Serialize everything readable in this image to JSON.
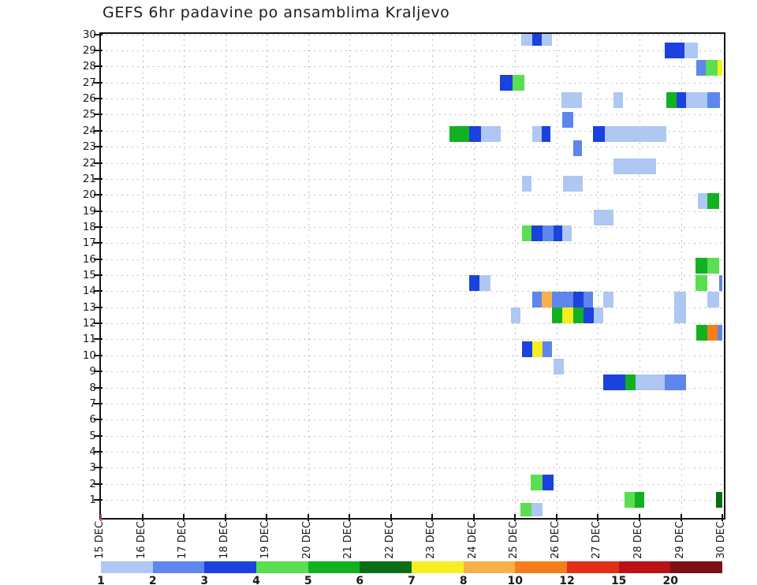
{
  "title": "GEFS 6hr padavine po ansamblima Kraljevo",
  "chart_data": {
    "type": "heatmap",
    "description": "GEFS ensemble 6-hourly precipitation grid; x = time in 6h slots over 15 days, y = ensemble member 1-30, cell color = precipitation amount (mm/6h)",
    "slot_hours": 6,
    "days": 15,
    "x_axis": {
      "labels": [
        "15 DEC",
        "16 DEC",
        "17 DEC",
        "18 DEC",
        "19 DEC",
        "20 DEC",
        "21 DEC",
        "22 DEC",
        "23 DEC",
        "24 DEC",
        "25 DEC",
        "26 DEC",
        "27 DEC",
        "28 DEC",
        "29 DEC",
        "30 DEC"
      ]
    },
    "y_axis": {
      "min": 1,
      "max": 30,
      "step": 1,
      "labels": [
        30,
        29,
        28,
        27,
        26,
        25,
        24,
        23,
        22,
        21,
        20,
        19,
        18,
        17,
        16,
        15,
        14,
        13,
        12,
        11,
        10,
        9,
        8,
        7,
        6,
        5,
        4,
        3,
        2,
        1
      ]
    },
    "grid": {
      "shown": true,
      "style": "dotted",
      "color": "#8c8c8c"
    },
    "palette": {
      "L": {
        "hex": "#aec7f3",
        "range_mm": "1-2"
      },
      "M": {
        "hex": "#5e86ec",
        "range_mm": "2-3"
      },
      "D": {
        "hex": "#1b41de",
        "range_mm": "3-4"
      },
      "LG": {
        "hex": "#5ade52",
        "range_mm": "4-5"
      },
      "G": {
        "hex": "#12b121",
        "range_mm": "5-6"
      },
      "DG": {
        "hex": "#0b6e14",
        "range_mm": "6-7"
      },
      "Y": {
        "hex": "#f6ee20",
        "range_mm": "7-8"
      },
      "LO": {
        "hex": "#f8b04a",
        "range_mm": "8-10"
      },
      "O": {
        "hex": "#f67d1b",
        "range_mm": "10-12"
      },
      "R": {
        "hex": "#e22f16",
        "range_mm": "12-15"
      },
      "DR": {
        "hex": "#bb1117",
        "range_mm": "15-20"
      },
      "MR": {
        "hex": "#7c1015",
        "range_mm": "20+"
      }
    },
    "colorbar": {
      "values": [
        1,
        2,
        3,
        4,
        5,
        6,
        7,
        8,
        10,
        12,
        15,
        20
      ],
      "colors": [
        "#aec7f3",
        "#5e86ec",
        "#1b41de",
        "#5ade52",
        "#12b121",
        "#0b6e14",
        "#f6ee20",
        "#f8b04a",
        "#f67d1b",
        "#e22f16",
        "#bb1117",
        "#7c1015"
      ]
    },
    "cell_format": [
      "member_y",
      "slot_x",
      "slot_w",
      "color_key"
    ],
    "cells": [
      [
        29.8,
        40.6,
        1.07,
        "L"
      ],
      [
        29.8,
        41.65,
        0.91,
        "D"
      ],
      [
        29.8,
        42.56,
        0.99,
        "L"
      ],
      [
        29.0,
        54.44,
        1.9,
        "D"
      ],
      [
        29.0,
        56.34,
        1.27,
        "L"
      ],
      [
        27.9,
        57.49,
        0.91,
        "M"
      ],
      [
        27.9,
        58.4,
        1.14,
        "LG"
      ],
      [
        27.9,
        59.54,
        0.45,
        "Y"
      ],
      [
        27.0,
        38.53,
        1.22,
        "D"
      ],
      [
        27.0,
        39.75,
        1.14,
        "LG"
      ],
      [
        25.9,
        44.47,
        1.98,
        "L"
      ],
      [
        25.9,
        49.49,
        0.91,
        "L"
      ],
      [
        25.9,
        54.6,
        0.99,
        "G"
      ],
      [
        25.9,
        55.58,
        0.91,
        "D"
      ],
      [
        25.9,
        56.5,
        2.06,
        "L"
      ],
      [
        25.9,
        58.55,
        1.22,
        "M"
      ],
      [
        24.7,
        44.54,
        1.07,
        "M"
      ],
      [
        23.8,
        33.65,
        1.9,
        "G"
      ],
      [
        23.8,
        35.56,
        1.14,
        "D"
      ],
      [
        23.8,
        36.7,
        1.9,
        "L"
      ],
      [
        23.8,
        41.65,
        0.91,
        "L"
      ],
      [
        23.8,
        42.56,
        0.84,
        "D"
      ],
      [
        23.8,
        47.51,
        1.14,
        "D"
      ],
      [
        23.8,
        48.65,
        5.94,
        "L"
      ],
      [
        22.9,
        45.61,
        0.84,
        "M"
      ],
      [
        21.8,
        49.49,
        4.11,
        "L"
      ],
      [
        20.7,
        40.66,
        0.91,
        "L"
      ],
      [
        20.7,
        44.62,
        1.9,
        "L"
      ],
      [
        19.6,
        57.64,
        0.91,
        "L"
      ],
      [
        19.6,
        58.55,
        1.14,
        "G"
      ],
      [
        18.6,
        47.59,
        1.9,
        "L"
      ],
      [
        17.6,
        40.66,
        0.91,
        "LG"
      ],
      [
        17.6,
        41.57,
        1.07,
        "D"
      ],
      [
        17.6,
        42.64,
        1.07,
        "M"
      ],
      [
        17.6,
        43.71,
        0.84,
        "D"
      ],
      [
        17.6,
        44.54,
        0.91,
        "L"
      ],
      [
        15.6,
        57.39,
        1.14,
        "G"
      ],
      [
        15.6,
        58.53,
        1.14,
        "LG"
      ],
      [
        14.5,
        35.56,
        0.99,
        "D"
      ],
      [
        14.5,
        36.55,
        1.07,
        "L"
      ],
      [
        14.5,
        57.39,
        1.14,
        "LG"
      ],
      [
        14.5,
        59.67,
        0.4,
        "M"
      ],
      [
        13.5,
        41.65,
        0.91,
        "M"
      ],
      [
        13.5,
        42.56,
        0.99,
        "LO"
      ],
      [
        13.5,
        43.55,
        0.99,
        "M"
      ],
      [
        13.5,
        44.54,
        1.07,
        "M"
      ],
      [
        13.5,
        45.61,
        0.99,
        "D"
      ],
      [
        13.5,
        46.6,
        0.91,
        "M"
      ],
      [
        13.5,
        48.5,
        0.99,
        "L"
      ],
      [
        13.5,
        55.35,
        1.14,
        "L"
      ],
      [
        13.5,
        58.53,
        1.14,
        "L"
      ],
      [
        12.5,
        39.59,
        0.91,
        "L"
      ],
      [
        12.5,
        43.55,
        0.99,
        "G"
      ],
      [
        12.5,
        44.54,
        1.07,
        "Y"
      ],
      [
        12.5,
        45.61,
        0.99,
        "G"
      ],
      [
        12.5,
        46.6,
        0.99,
        "D"
      ],
      [
        12.5,
        47.59,
        0.91,
        "L"
      ],
      [
        12.5,
        55.35,
        1.14,
        "L"
      ],
      [
        11.4,
        57.49,
        1.07,
        "G"
      ],
      [
        11.4,
        58.55,
        0.99,
        "O"
      ],
      [
        11.4,
        59.54,
        0.45,
        "M"
      ],
      [
        10.4,
        40.66,
        0.99,
        "D"
      ],
      [
        10.4,
        41.65,
        0.99,
        "Y"
      ],
      [
        10.4,
        42.64,
        0.91,
        "M"
      ],
      [
        9.3,
        43.7,
        0.99,
        "L"
      ],
      [
        8.3,
        48.5,
        2.13,
        "D"
      ],
      [
        8.3,
        50.63,
        0.99,
        "G"
      ],
      [
        8.3,
        51.62,
        2.82,
        "L"
      ],
      [
        8.3,
        54.44,
        2.06,
        "M"
      ],
      [
        2.1,
        41.5,
        1.14,
        "LG"
      ],
      [
        2.1,
        42.64,
        1.07,
        "D"
      ],
      [
        1.0,
        50.56,
        0.99,
        "LG"
      ],
      [
        1.0,
        51.55,
        0.91,
        "G"
      ],
      [
        1.0,
        59.39,
        0.76,
        "DG"
      ],
      [
        0.3,
        40.51,
        1.07,
        "LG"
      ],
      [
        0.3,
        41.57,
        1.07,
        "L"
      ]
    ]
  }
}
